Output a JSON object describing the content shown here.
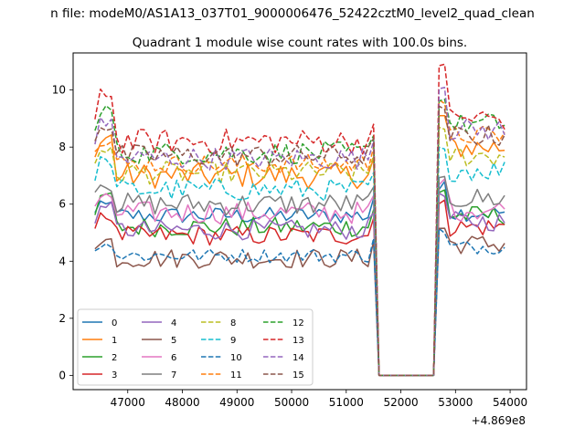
{
  "figure": {
    "suptitle": "n file: modeM0/AS1A13_037T01_9000006476_52422cztM0_level2_quad_clean",
    "title": "Quadrant 1 module wise count rates with 100.0s bins.",
    "x_offset_label": "+4.869e8"
  },
  "chart_data": {
    "type": "line",
    "title": "Quadrant 1 module wise count rates with 100.0s bins.",
    "xlabel": "",
    "ylabel": "",
    "x_offset": 486900000,
    "xlim": [
      46000,
      54300
    ],
    "ylim": [
      -0.5,
      11.3
    ],
    "x_ticks": [
      47000,
      48000,
      49000,
      50000,
      51000,
      52000,
      53000,
      54000
    ],
    "x_tick_labels": [
      "47000",
      "48000",
      "49000",
      "50000",
      "51000",
      "52000",
      "53000",
      "54000"
    ],
    "y_ticks": [
      0,
      2,
      4,
      6,
      8,
      10
    ],
    "y_tick_labels": [
      "0",
      "2",
      "4",
      "6",
      "8",
      "10"
    ],
    "grid": false,
    "legend_position": "lower-left",
    "segments": {
      "seg1_start": 46400,
      "seg1_end": 51500,
      "gap_start": 51600,
      "gap_end": 52600,
      "seg2_start": 52600,
      "seg2_end": 53950
    },
    "series": [
      {
        "name": "0",
        "color": "#1f77b4",
        "dash": "solid",
        "level1": 5.6,
        "level2": 5.7,
        "peak1": 6.0,
        "peak2": 6.8,
        "noise": 0.3
      },
      {
        "name": "1",
        "color": "#ff7f0e",
        "dash": "solid",
        "level1": 7.0,
        "level2": 8.0,
        "peak1": 8.5,
        "peak2": 9.3,
        "noise": 0.45
      },
      {
        "name": "2",
        "color": "#2ca02c",
        "dash": "solid",
        "level1": 5.2,
        "level2": 5.6,
        "peak1": 6.4,
        "peak2": 6.6,
        "noise": 0.35
      },
      {
        "name": "3",
        "color": "#d62728",
        "dash": "solid",
        "level1": 4.9,
        "level2": 5.2,
        "peak1": 5.6,
        "peak2": 6.2,
        "noise": 0.35
      },
      {
        "name": "4",
        "color": "#9467bd",
        "dash": "solid",
        "level1": 5.1,
        "level2": 5.4,
        "peak1": 6.0,
        "peak2": 6.4,
        "noise": 0.35
      },
      {
        "name": "5",
        "color": "#8c564b",
        "dash": "solid",
        "level1": 4.1,
        "level2": 4.6,
        "peak1": 4.8,
        "peak2": 5.3,
        "noise": 0.35
      },
      {
        "name": "6",
        "color": "#e377c2",
        "dash": "solid",
        "level1": 5.7,
        "level2": 5.8,
        "peak1": 6.3,
        "peak2": 6.9,
        "noise": 0.4
      },
      {
        "name": "7",
        "color": "#7f7f7f",
        "dash": "solid",
        "level1": 6.0,
        "level2": 6.2,
        "peak1": 6.7,
        "peak2": 7.2,
        "noise": 0.4
      },
      {
        "name": "8",
        "color": "#bcbd22",
        "dash": "dashed",
        "level1": 7.1,
        "level2": 7.7,
        "peak1": 8.0,
        "peak2": 8.9,
        "noise": 0.4
      },
      {
        "name": "9",
        "color": "#17becf",
        "dash": "dashed",
        "level1": 6.5,
        "level2": 7.2,
        "peak1": 7.6,
        "peak2": 8.2,
        "noise": 0.4
      },
      {
        "name": "10",
        "color": "#1f77b4",
        "dash": "dashed",
        "level1": 4.2,
        "level2": 4.5,
        "peak1": 4.6,
        "peak2": 5.2,
        "noise": 0.25
      },
      {
        "name": "11",
        "color": "#ff7f0e",
        "dash": "dashed",
        "level1": 7.4,
        "level2": 8.4,
        "peak1": 8.3,
        "peak2": 9.8,
        "noise": 0.35
      },
      {
        "name": "12",
        "color": "#2ca02c",
        "dash": "dashed",
        "level1": 7.8,
        "level2": 8.8,
        "peak1": 9.5,
        "peak2": 9.7,
        "noise": 0.4
      },
      {
        "name": "13",
        "color": "#d62728",
        "dash": "dashed",
        "level1": 8.2,
        "level2": 9.0,
        "peak1": 10.0,
        "peak2": 11.0,
        "noise": 0.45
      },
      {
        "name": "14",
        "color": "#9467bd",
        "dash": "dashed",
        "level1": 7.6,
        "level2": 8.6,
        "peak1": 9.0,
        "peak2": 10.2,
        "noise": 0.4
      },
      {
        "name": "15",
        "color": "#8c564b",
        "dash": "dashed",
        "level1": 7.7,
        "level2": 8.4,
        "peak1": 8.8,
        "peak2": 9.6,
        "noise": 0.4
      }
    ]
  }
}
